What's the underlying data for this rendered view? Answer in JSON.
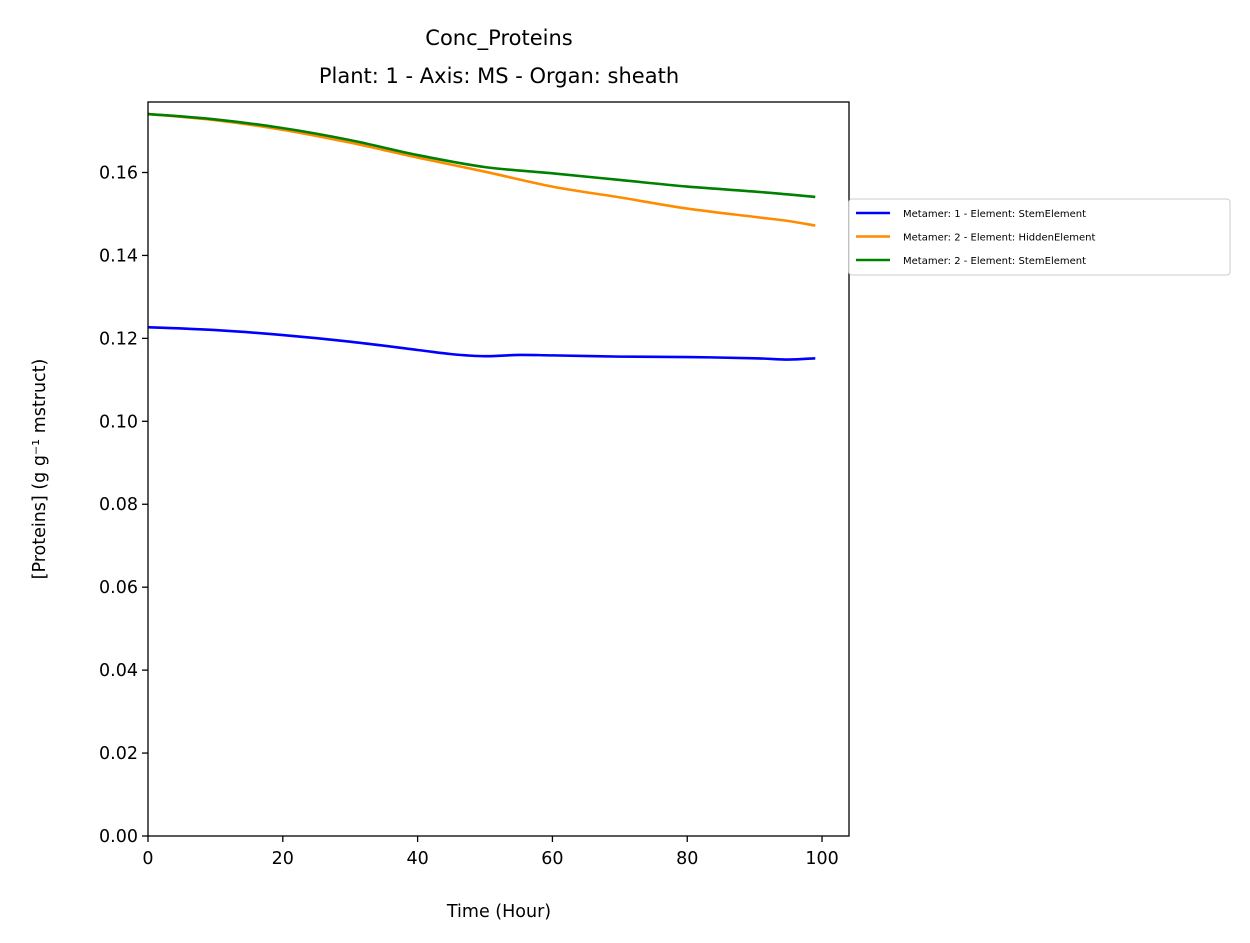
{
  "chart_data": {
    "type": "line",
    "title": "Conc_Proteins",
    "subtitle": "Plant: 1 - Axis: MS - Organ: sheath",
    "xlabel": "Time (Hour)",
    "ylabel": "[Proteins] (g g⁻¹ mstruct)",
    "xlim": [
      0,
      104
    ],
    "ylim": [
      0,
      0.177
    ],
    "x_ticks": [
      0,
      20,
      40,
      60,
      80,
      100
    ],
    "x_tick_labels": [
      "0",
      "20",
      "40",
      "60",
      "80",
      "100"
    ],
    "y_ticks": [
      0,
      0.02,
      0.04,
      0.06,
      0.08,
      0.1,
      0.12,
      0.14,
      0.16
    ],
    "y_tick_labels": [
      "0.00",
      "0.02",
      "0.04",
      "0.06",
      "0.08",
      "0.10",
      "0.12",
      "0.14",
      "0.16"
    ],
    "grid": false,
    "legend_position": "outside-right",
    "series": [
      {
        "name": "Metamer: 1 - Element: StemElement",
        "color": "#0000ff",
        "x": [
          0,
          10,
          20,
          30,
          40,
          45,
          50,
          55,
          60,
          70,
          80,
          90,
          95,
          99
        ],
        "y": [
          0.1227,
          0.122,
          0.1208,
          0.1192,
          0.1172,
          0.1162,
          0.1157,
          0.116,
          0.1159,
          0.1156,
          0.1155,
          0.1152,
          0.1149,
          0.1152
        ]
      },
      {
        "name": "Metamer: 2 - Element: HiddenElement",
        "color": "#ff8c00",
        "x": [
          0,
          10,
          20,
          30,
          40,
          50,
          60,
          70,
          80,
          90,
          95,
          99
        ],
        "y": [
          0.1741,
          0.1726,
          0.1703,
          0.1672,
          0.1636,
          0.1602,
          0.1566,
          0.154,
          0.1513,
          0.1493,
          0.1483,
          0.1472
        ]
      },
      {
        "name": "Metamer: 2 - Element: StemElement",
        "color": "#008000",
        "x": [
          0,
          10,
          20,
          30,
          40,
          50,
          60,
          70,
          80,
          90,
          95,
          99
        ],
        "y": [
          0.1741,
          0.1728,
          0.1707,
          0.1678,
          0.1642,
          0.1613,
          0.1598,
          0.1582,
          0.1566,
          0.1554,
          0.1547,
          0.1541
        ]
      }
    ]
  }
}
